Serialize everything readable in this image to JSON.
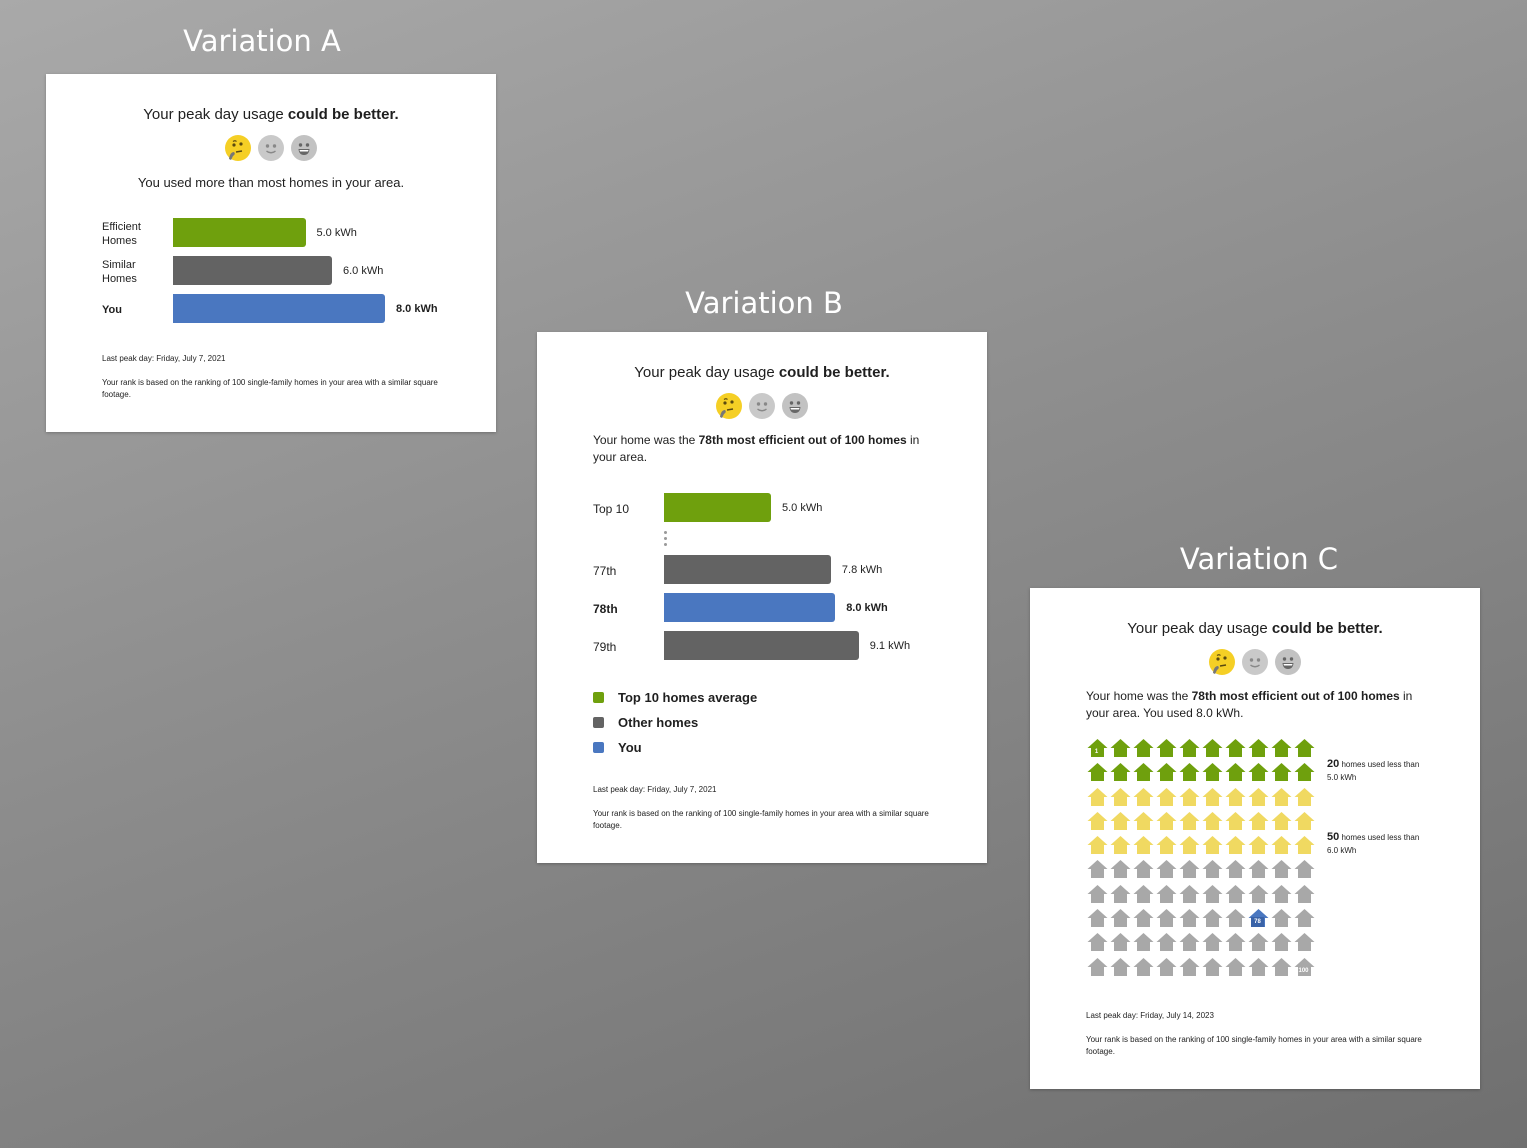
{
  "colors": {
    "green": "#6fa00d",
    "gray": "#636363",
    "blue": "#4a77c0",
    "yellow_house": "#f0d961",
    "gray_house": "#a8a8a8"
  },
  "variation_a": {
    "title": "Variation A",
    "headline_prefix": "Your peak day usage ",
    "headline_bold": "could be better.",
    "emoji_icons": [
      "thinking-face-icon",
      "slightly-smiling-face-icon",
      "grinning-face-icon"
    ],
    "subtext": "You used more than most homes in your area.",
    "rows": [
      {
        "label": "Efficient Homes",
        "value": 5.0,
        "value_label": "5.0 kWh",
        "color": "#6fa00d"
      },
      {
        "label": "Similar Homes",
        "value": 6.0,
        "value_label": "6.0 kWh",
        "color": "#636363"
      },
      {
        "label": "You",
        "value": 8.0,
        "value_label": "8.0 kWh",
        "color": "#4a77c0"
      }
    ],
    "last_peak": "Last peak day: Friday, July 7, 2021",
    "rank_note": "Your rank is based on the ranking of 100 single-family homes in your area with a similar square footage."
  },
  "variation_b": {
    "title": "Variation B",
    "headline_prefix": "Your peak day usage ",
    "headline_bold": "could be better.",
    "sub_prefix": "Your home was the ",
    "sub_bold": "78th most efficient out of 100 homes",
    "sub_suffix": " in your area.",
    "rows": [
      {
        "label": "Top 10",
        "value": 5.0,
        "value_label": "5.0 kWh",
        "color": "#6fa00d"
      },
      {
        "label": "77th",
        "value": 7.8,
        "value_label": "7.8 kWh",
        "color": "#636363"
      },
      {
        "label": "78th",
        "value": 8.0,
        "value_label": "8.0 kWh",
        "color": "#4a77c0"
      },
      {
        "label": "79th",
        "value": 9.1,
        "value_label": "9.1 kWh",
        "color": "#636363"
      }
    ],
    "legend": [
      {
        "label": "Top 10 homes average",
        "color": "#6fa00d"
      },
      {
        "label": "Other homes",
        "color": "#636363"
      },
      {
        "label": "You",
        "color": "#4a77c0"
      }
    ],
    "last_peak": "Last peak day: Friday, July 7, 2021",
    "rank_note": "Your rank is based on the ranking of 100 single-family homes in your area with a similar square footage."
  },
  "variation_c": {
    "title": "Variation C",
    "headline_prefix": "Your peak day usage ",
    "headline_bold": "could be better.",
    "sub_prefix": "Your home was the ",
    "sub_bold": "78th most efficient out of 100 homes",
    "sub_suffix": " in your area. You used 8.0 kWh.",
    "total_homes": 100,
    "green_count": 20,
    "yellow_count": 30,
    "your_rank": 78,
    "first_label": "1",
    "your_label": "78",
    "last_label": "100",
    "annotations": [
      {
        "count": "20",
        "text": "homes used less than 5.0 kWh"
      },
      {
        "count": "50",
        "text": "homes used less than 6.0 kWh"
      }
    ],
    "last_peak": "Last peak day: Friday, July 14, 2023",
    "rank_note": "Your rank is based on the ranking of 100 single-family homes in your area with a similar square footage."
  }
}
